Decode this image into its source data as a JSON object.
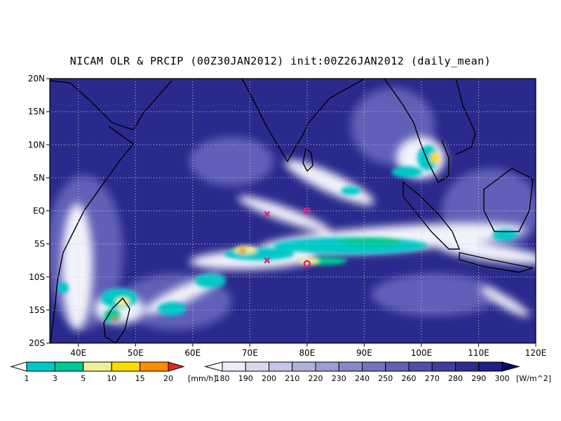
{
  "title": "NICAM OLR & PRCIP (00Z30JAN2012) init:00Z26JAN2012 (daily_mean)",
  "map": {
    "lon_range": [
      35,
      120
    ],
    "lat_range": [
      -20,
      20
    ],
    "lat_ticks": [
      "20N",
      "15N",
      "10N",
      "5N",
      "EQ",
      "5S",
      "10S",
      "15S",
      "20S"
    ],
    "lon_ticks": [
      "40E",
      "50E",
      "60E",
      "70E",
      "80E",
      "90E",
      "100E",
      "110E",
      "120E"
    ],
    "gridlines": "dotted",
    "markers": [
      {
        "symbol": "x",
        "lon": 73,
        "lat": -0.5,
        "color": "#dd2288"
      },
      {
        "symbol": "o",
        "lon": 80,
        "lat": 0,
        "color": "#dd2288"
      },
      {
        "symbol": "x",
        "lon": 73,
        "lat": -7.5,
        "color": "#dd2288"
      },
      {
        "symbol": "o",
        "lon": 80,
        "lat": -8,
        "color": "#dd2288"
      }
    ]
  },
  "precip_colorbar": {
    "labels": [
      "1",
      "3",
      "5",
      "10",
      "15",
      "20"
    ],
    "unit": "[mm/h]",
    "colors": [
      "#00c8c8",
      "#00c896",
      "#f0f096",
      "#fadc00",
      "#ff8c00",
      "#e62828"
    ]
  },
  "olr_colorbar": {
    "labels": [
      "180",
      "190",
      "200",
      "210",
      "220",
      "230",
      "240",
      "250",
      "260",
      "270",
      "280",
      "290",
      "300"
    ],
    "unit": "[W/m^2]",
    "colors": [
      "#ececf6",
      "#d8d8ee",
      "#c4c4e6",
      "#b0b0dc",
      "#9c9cd2",
      "#8888c8",
      "#7474be",
      "#6262b4",
      "#5050aa",
      "#3e3ea0",
      "#2c2c96",
      "#1e1e8c",
      "#141482",
      "#0a0a6e"
    ]
  },
  "colors": {
    "background": "#2a2a8c",
    "coast": "#000000",
    "marker": "#dd2288"
  }
}
